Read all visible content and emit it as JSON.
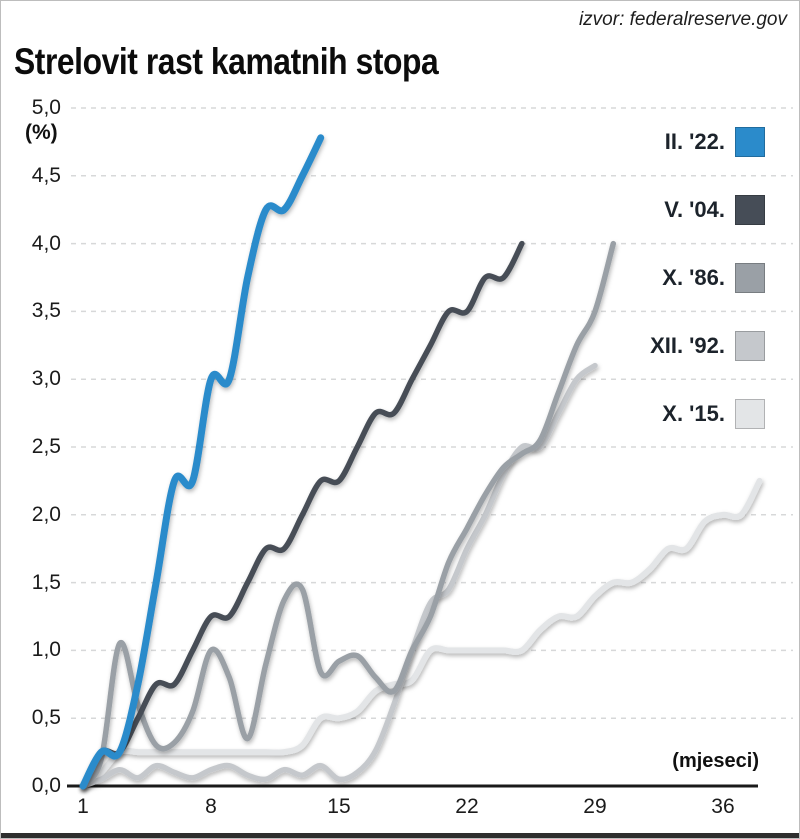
{
  "source": "izvor: federalreserve.gov",
  "title": "Strelovit rast kamatnih stopa",
  "y_axis": {
    "unit_label": "(%)",
    "tick_labels": [
      "0,0",
      "0,5",
      "1,0",
      "1,5",
      "2,0",
      "2,5",
      "3,0",
      "3,5",
      "4,0",
      "4,5",
      "5,0"
    ],
    "min": 0,
    "max": 5,
    "step": 0.5
  },
  "x_axis": {
    "unit_label": "(mjeseci)",
    "tick_values": [
      1,
      8,
      15,
      22,
      29,
      36
    ],
    "min": 1,
    "max": 36
  },
  "legend": {
    "items": [
      {
        "label": "II. '22.",
        "color": "#2b8bcb"
      },
      {
        "label": "V. '04.",
        "color": "#464d57"
      },
      {
        "label": "X. '86.",
        "color": "#9aa0a6"
      },
      {
        "label": "XII. '92.",
        "color": "#c5c8cc"
      },
      {
        "label": "X. '15.",
        "color": "#e3e5e7"
      }
    ]
  },
  "colors": {
    "grid": "#d7d8d9",
    "axis": "#1a1a1a",
    "bottom_bar": "#2e2e2e",
    "background": "#ffffff"
  },
  "chart_data": {
    "type": "line",
    "title": "Strelovit rast kamatnih stopa",
    "xlabel": "(mjeseci)",
    "ylabel": "(%)",
    "xlim": [
      1,
      38
    ],
    "ylim": [
      0,
      5
    ],
    "grid": "horizontal dashed every 0.5",
    "legend_position": "right",
    "x_unit": "months since cycle start (month 1 = start)",
    "y_unit": "cumulative change of Fed funds rate, percentage points",
    "series": [
      {
        "name": "II. '22.",
        "color": "#2b8bcb",
        "stroke_width": 7,
        "months": [
          1,
          2,
          3,
          4,
          5,
          6,
          7,
          8,
          9,
          10,
          11,
          12,
          13,
          14
        ],
        "values": [
          0,
          0.25,
          0.25,
          0.75,
          1.5,
          2.25,
          2.25,
          3.0,
          3.0,
          3.75,
          4.25,
          4.25,
          4.5,
          4.78
        ]
      },
      {
        "name": "V. '04.",
        "color": "#464d57",
        "stroke_width": 5.5,
        "months": [
          1,
          2,
          3,
          4,
          5,
          6,
          7,
          8,
          9,
          10,
          11,
          12,
          13,
          14,
          15,
          16,
          17,
          18,
          19,
          20,
          21,
          22,
          23,
          24,
          25
        ],
        "values": [
          0,
          0.25,
          0.25,
          0.5,
          0.75,
          0.75,
          1.0,
          1.25,
          1.25,
          1.5,
          1.75,
          1.75,
          2.0,
          2.25,
          2.25,
          2.5,
          2.75,
          2.75,
          3.0,
          3.25,
          3.5,
          3.5,
          3.75,
          3.75,
          4.0
        ]
      },
      {
        "name": "X. '86.",
        "color": "#9aa0a6",
        "stroke_width": 5.5,
        "months": [
          1,
          2,
          3,
          4,
          5,
          6,
          7,
          8,
          9,
          10,
          11,
          12,
          13,
          14,
          15,
          16,
          17,
          18,
          19,
          20,
          21,
          22,
          23,
          24,
          25,
          26,
          27,
          28,
          29,
          30
        ],
        "values": [
          0,
          0.2,
          1.05,
          0.6,
          0.3,
          0.32,
          0.55,
          1.0,
          0.8,
          0.35,
          0.9,
          1.37,
          1.45,
          0.84,
          0.92,
          0.96,
          0.8,
          0.7,
          1.0,
          1.25,
          1.65,
          1.9,
          2.15,
          2.35,
          2.45,
          2.55,
          2.9,
          3.25,
          3.5,
          4.0
        ]
      },
      {
        "name": "XII. '92.",
        "color": "#c5c8cc",
        "stroke_width": 5.5,
        "months": [
          1,
          2,
          3,
          4,
          5,
          6,
          7,
          8,
          9,
          10,
          11,
          12,
          13,
          14,
          15,
          16,
          17,
          18,
          19,
          20,
          21,
          22,
          23,
          24,
          25,
          26,
          27,
          28,
          29
        ],
        "values": [
          0,
          0.05,
          0.12,
          0.06,
          0.15,
          0.1,
          0.06,
          0.12,
          0.15,
          0.08,
          0.05,
          0.12,
          0.08,
          0.15,
          0.05,
          0.1,
          0.26,
          0.6,
          1.0,
          1.35,
          1.45,
          1.75,
          2.0,
          2.3,
          2.5,
          2.5,
          2.75,
          3.0,
          3.1
        ]
      },
      {
        "name": "X. '15.",
        "color": "#e3e5e7",
        "stroke_width": 6,
        "months": [
          1,
          2,
          3,
          4,
          5,
          6,
          7,
          8,
          9,
          10,
          11,
          12,
          13,
          14,
          15,
          16,
          17,
          18,
          19,
          20,
          21,
          22,
          23,
          24,
          25,
          26,
          27,
          28,
          29,
          30,
          31,
          32,
          33,
          34,
          35,
          36,
          37,
          38
        ],
        "values": [
          0,
          0.1,
          0.25,
          0.25,
          0.25,
          0.25,
          0.25,
          0.25,
          0.25,
          0.25,
          0.25,
          0.25,
          0.3,
          0.5,
          0.5,
          0.55,
          0.7,
          0.75,
          0.78,
          1.0,
          1.0,
          1.0,
          1.0,
          1.0,
          1.0,
          1.15,
          1.25,
          1.25,
          1.4,
          1.5,
          1.5,
          1.6,
          1.75,
          1.75,
          1.95,
          2.0,
          2.0,
          2.25
        ]
      }
    ]
  }
}
